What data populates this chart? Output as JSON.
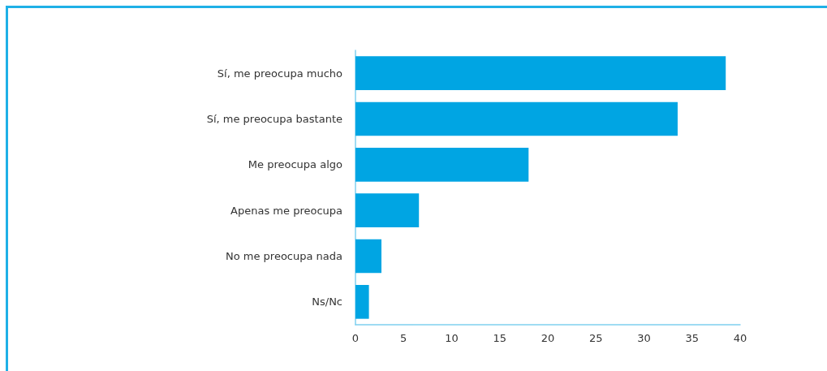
{
  "chart_data": {
    "type": "bar",
    "orientation": "horizontal",
    "categories": [
      "Sí, me preocupa mucho",
      "Sí, me preocupa bastante",
      "Me preocupa algo",
      "Apenas me preocupa",
      "No me preocupa nada",
      "Ns/Nc"
    ],
    "values": [
      38.5,
      33.5,
      18.0,
      6.6,
      2.7,
      1.4
    ],
    "color": "#00a5e3",
    "xlim": [
      0,
      40
    ],
    "xticks": [
      0,
      5,
      10,
      15,
      20,
      25,
      30,
      35,
      40
    ],
    "grid": false
  }
}
